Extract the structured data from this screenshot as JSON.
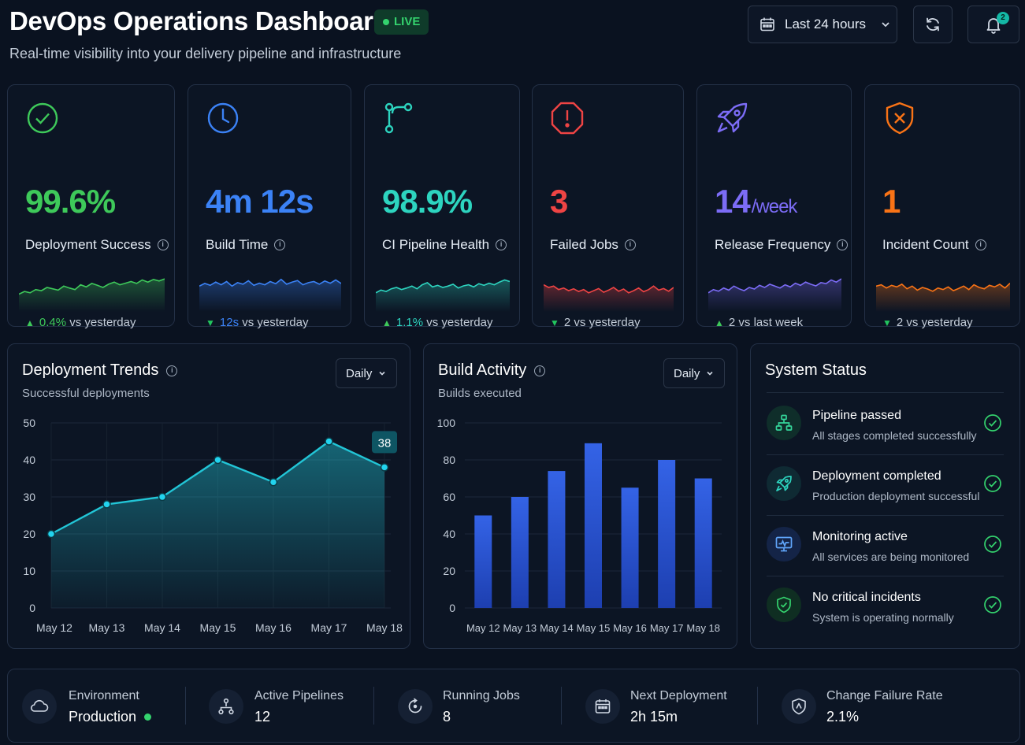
{
  "header": {
    "title": "DevOps Operations Dashboard",
    "live_label": "LIVE",
    "subtitle": "Real-time visibility into your delivery pipeline and infrastructure",
    "time_range": "Last 24 hours",
    "notification_count": "2"
  },
  "kpis": [
    {
      "label": "Deployment Success",
      "value": "99.6%",
      "unit": "",
      "delta_change": "0.4%",
      "delta_text": " vs yesterday",
      "direction": "up",
      "color": "#3ec95a",
      "icon": "check-circle-icon"
    },
    {
      "label": "Build Time",
      "value": "4m 12s",
      "unit": "",
      "delta_change": "12s",
      "delta_text": " vs yesterday",
      "direction": "down",
      "color": "#3b82f6",
      "icon": "clock-icon"
    },
    {
      "label": "CI Pipeline Health",
      "value": "98.9%",
      "unit": "",
      "delta_change": "1.1%",
      "delta_text": " vs yesterday",
      "direction": "up",
      "color": "#2dd4bf",
      "icon": "git-branch-icon"
    },
    {
      "label": "Failed Jobs",
      "value": "3",
      "unit": "",
      "delta_change": "",
      "delta_text": "2 vs yesterday",
      "direction": "down",
      "color": "#ef4444",
      "icon": "alert-octagon-icon"
    },
    {
      "label": "Release Frequency",
      "value": "14",
      "unit": "/week",
      "delta_change": "",
      "delta_text": "2 vs last week",
      "direction": "up",
      "color": "#7c6cf6",
      "icon": "rocket-icon"
    },
    {
      "label": "Incident Count",
      "value": "1",
      "unit": "",
      "delta_change": "",
      "delta_text": "2 vs yesterday",
      "direction": "down",
      "color": "#f97316",
      "icon": "shield-x-icon"
    }
  ],
  "deployment_trends": {
    "title": "Deployment Trends",
    "subtitle": "Successful deployments",
    "period": "Daily",
    "highlight_label": "38"
  },
  "build_activity": {
    "title": "Build Activity",
    "subtitle": "Builds executed",
    "period": "Daily"
  },
  "chart_data": [
    {
      "type": "area",
      "title": "Deployment Trends",
      "subtitle": "Successful deployments",
      "categories": [
        "May 12",
        "May 13",
        "May 14",
        "May 15",
        "May 16",
        "May 17",
        "May 18"
      ],
      "values": [
        20,
        28,
        30,
        40,
        34,
        45,
        38
      ],
      "ylim": [
        0,
        50
      ],
      "yticks": [
        0,
        10,
        20,
        30,
        40,
        50
      ],
      "color": "#22c5d6"
    },
    {
      "type": "bar",
      "title": "Build Activity",
      "subtitle": "Builds executed",
      "categories": [
        "May 12",
        "May 13",
        "May 14",
        "May 15",
        "May 16",
        "May 17",
        "May 18"
      ],
      "values": [
        50,
        60,
        74,
        89,
        65,
        80,
        70
      ],
      "ylim": [
        0,
        100
      ],
      "yticks": [
        0,
        20,
        40,
        60,
        80,
        100
      ],
      "color": "#2f58d9"
    }
  ],
  "system_status": {
    "title": "System Status",
    "items": [
      {
        "title": "Pipeline passed",
        "desc": "All stages completed successfully",
        "icon": "pipeline-icon"
      },
      {
        "title": "Deployment completed",
        "desc": "Production deployment successful",
        "icon": "rocket-icon"
      },
      {
        "title": "Monitoring active",
        "desc": "All services are being monitored",
        "icon": "monitor-icon"
      },
      {
        "title": "No critical incidents",
        "desc": "System is operating normally",
        "icon": "shield-check-icon"
      }
    ]
  },
  "footer": [
    {
      "label": "Environment",
      "value": "Production",
      "icon": "cloud-icon"
    },
    {
      "label": "Active Pipelines",
      "value": "12",
      "icon": "pipeline-icon"
    },
    {
      "label": "Running Jobs",
      "value": "8",
      "icon": "spinner-icon"
    },
    {
      "label": "Next Deployment",
      "value": "2h 15m",
      "icon": "calendar-icon"
    },
    {
      "label": "Change Failure Rate",
      "value": "2.1%",
      "icon": "shield-icon"
    }
  ]
}
